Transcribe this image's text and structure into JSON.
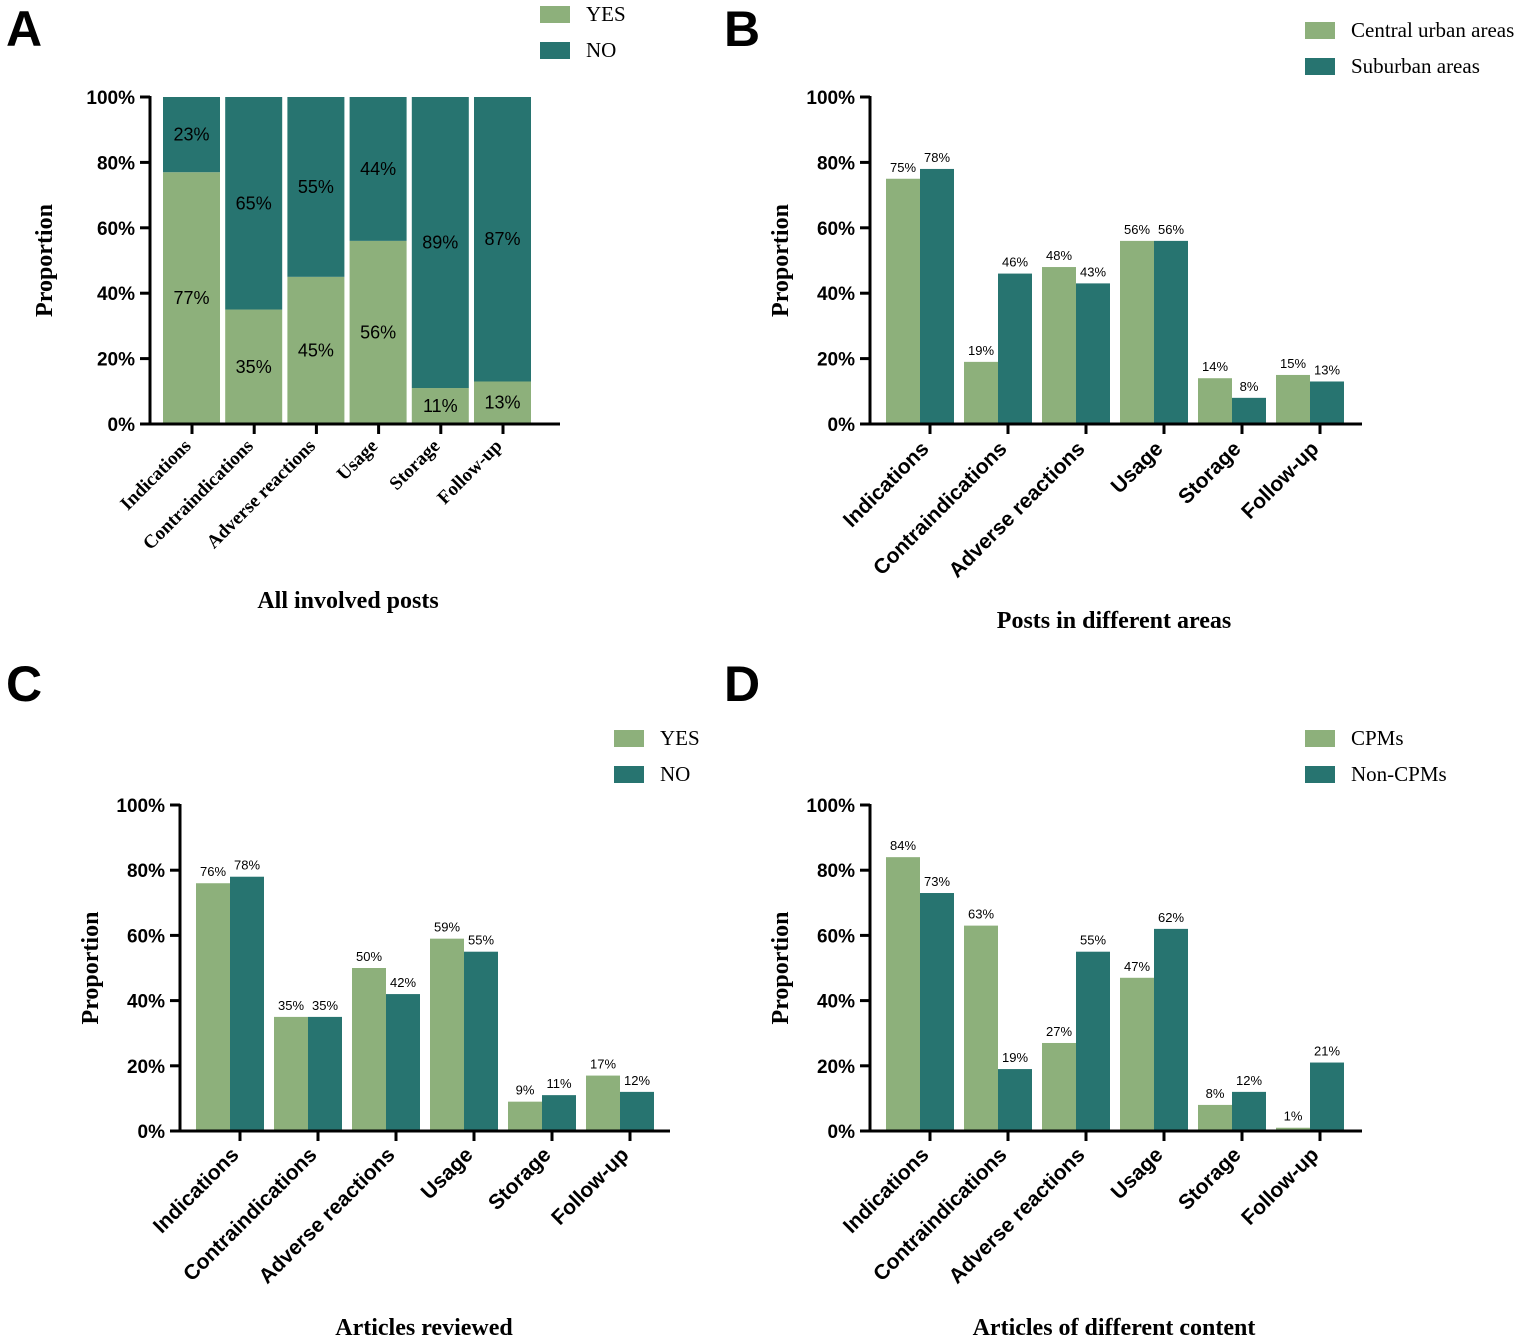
{
  "colors": {
    "series1": "#8db07b",
    "series2": "#277470",
    "axis": "#000000"
  },
  "chart_data": [
    {
      "panel": "A",
      "type": "bar",
      "stacked": true,
      "categories": [
        "Indications",
        "Contraindications",
        "Adverse reactions",
        "Usage",
        "Storage",
        "Follow-up"
      ],
      "series": [
        {
          "name": "YES",
          "values": [
            77,
            35,
            45,
            56,
            11,
            13
          ]
        },
        {
          "name": "NO",
          "values": [
            23,
            65,
            55,
            44,
            89,
            87
          ]
        }
      ],
      "title": "",
      "xlabel": "All involved posts",
      "ylabel": "Proportion",
      "ylim": [
        0,
        100
      ],
      "yticks": [
        "0%",
        "20%",
        "40%",
        "60%",
        "80%",
        "100%"
      ],
      "grid": false,
      "legend": "top-center"
    },
    {
      "panel": "B",
      "type": "bar",
      "stacked": false,
      "categories": [
        "Indications",
        "Contraindications",
        "Adverse reactions",
        "Usage",
        "Storage",
        "Follow-up"
      ],
      "series": [
        {
          "name": "Central urban areas",
          "values": [
            75,
            19,
            48,
            56,
            14,
            15
          ]
        },
        {
          "name": "Suburban areas",
          "values": [
            78,
            46,
            43,
            56,
            8,
            13
          ]
        }
      ],
      "title": "",
      "xlabel": "Posts in different areas",
      "ylabel": "Proportion",
      "ylim": [
        0,
        100
      ],
      "yticks": [
        "0%",
        "20%",
        "40%",
        "60%",
        "80%",
        "100%"
      ],
      "grid": false,
      "legend": "top-right"
    },
    {
      "panel": "C",
      "type": "bar",
      "stacked": false,
      "categories": [
        "Indications",
        "Contraindications",
        "Adverse reactions",
        "Usage",
        "Storage",
        "Follow-up"
      ],
      "series": [
        {
          "name": "YES",
          "values": [
            76,
            35,
            50,
            59,
            9,
            17
          ]
        },
        {
          "name": "NO",
          "values": [
            78,
            35,
            42,
            55,
            11,
            12
          ]
        }
      ],
      "title": "",
      "xlabel": "Articles reviewed",
      "ylabel": "Proportion",
      "ylim": [
        0,
        100
      ],
      "yticks": [
        "0%",
        "20%",
        "40%",
        "60%",
        "80%",
        "100%"
      ],
      "grid": false,
      "legend": "top-right"
    },
    {
      "panel": "D",
      "type": "bar",
      "stacked": false,
      "categories": [
        "Indications",
        "Contraindications",
        "Adverse reactions",
        "Usage",
        "Storage",
        "Follow-up"
      ],
      "series": [
        {
          "name": "CPMs",
          "values": [
            84,
            63,
            27,
            47,
            8,
            1
          ]
        },
        {
          "name": "Non-CPMs",
          "values": [
            73,
            19,
            55,
            62,
            12,
            21
          ]
        }
      ],
      "title": "",
      "xlabel": "Articles of different content",
      "ylabel": "Proportion",
      "ylim": [
        0,
        100
      ],
      "yticks": [
        "0%",
        "20%",
        "40%",
        "60%",
        "80%",
        "100%"
      ],
      "grid": false,
      "legend": "top-right"
    }
  ]
}
